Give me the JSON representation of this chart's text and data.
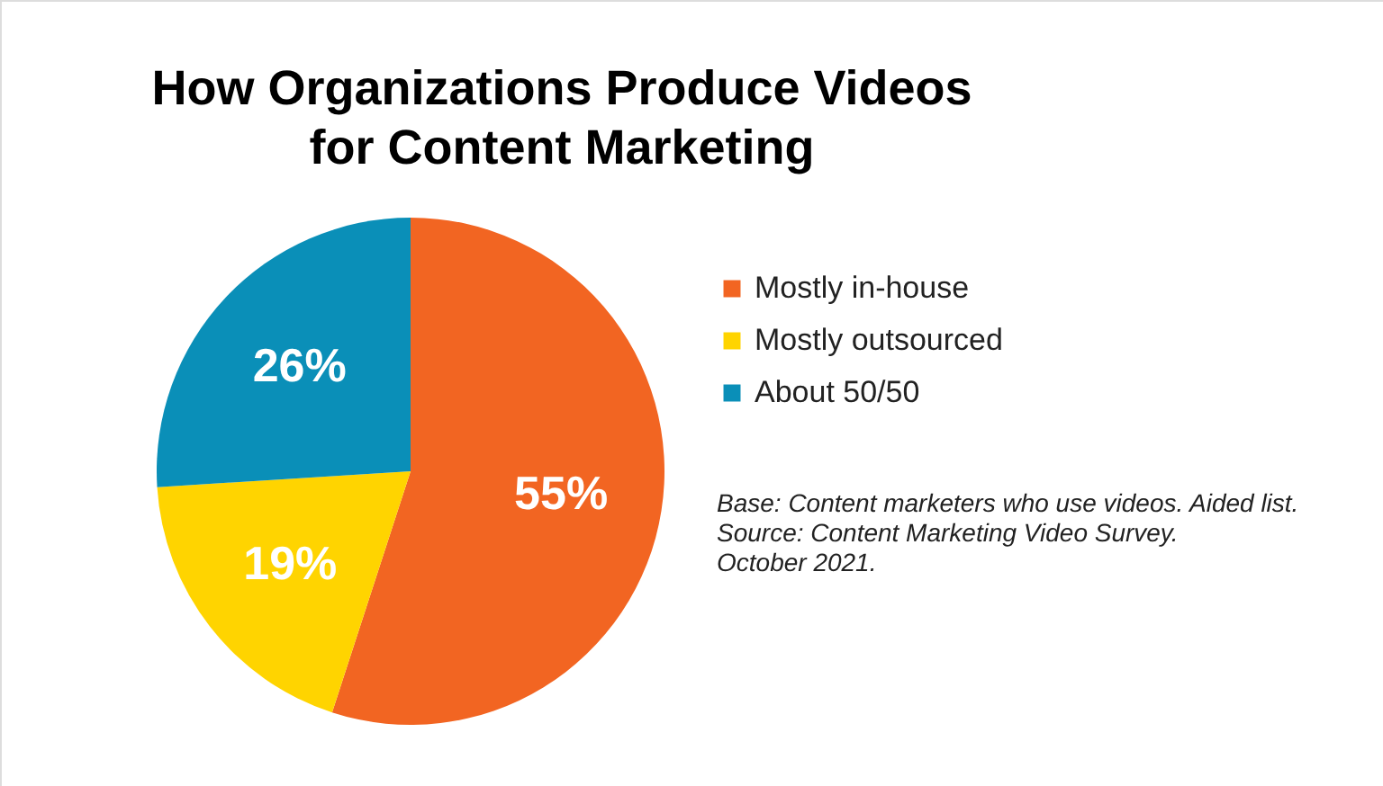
{
  "chart_data": {
    "type": "pie",
    "title": "How Organizations Produce Videos\nfor Content Marketing",
    "categories": [
      "Mostly in-house",
      "Mostly outsourced",
      "About 50/50"
    ],
    "values": [
      55,
      19,
      26
    ],
    "colors": [
      "#f26522",
      "#ffd400",
      "#0a8fb8"
    ],
    "value_labels": [
      "55%",
      "19%",
      "26%"
    ],
    "legend": "right",
    "annotations": [
      "Base: Content marketers who use videos. Aided list.",
      "Source: Content Marketing Video Survey.",
      "October 2021."
    ]
  }
}
